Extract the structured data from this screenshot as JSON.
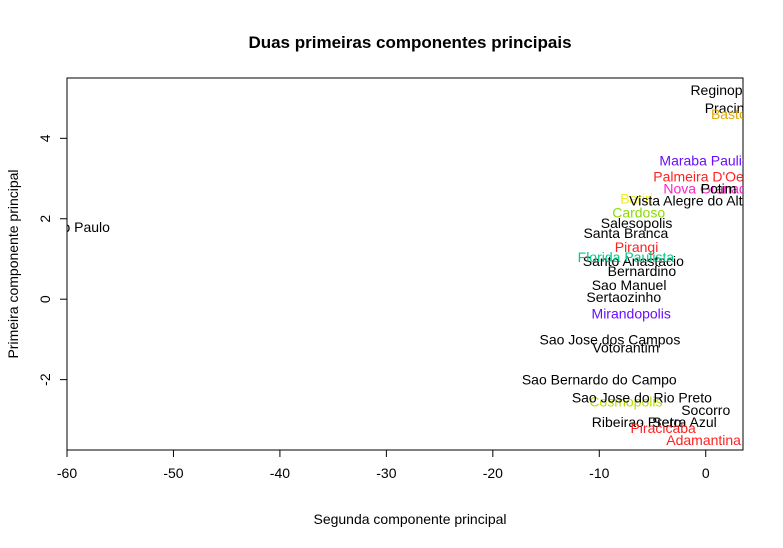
{
  "chart_data": {
    "type": "scatter",
    "title": "Duas primeiras componentes principais",
    "xlabel": "Segunda componente principal",
    "ylabel": "Primeira componente principal",
    "xlim": [
      -60,
      3.5
    ],
    "ylim": [
      -3.75,
      5.5
    ],
    "xticks": [
      -60,
      -50,
      -40,
      -30,
      -20,
      -10,
      0
    ],
    "yticks": [
      -2,
      0,
      2,
      4
    ],
    "xtick_labels": [
      "-60",
      "-50",
      "-40",
      "-30",
      "-20",
      "-10",
      "0"
    ],
    "ytick_labels": [
      "-2",
      "0",
      "2",
      "4"
    ],
    "grid": false,
    "legend": "none",
    "points": [
      {
        "label": "Sao Paulo",
        "x": -59.0,
        "y": 1.8,
        "color": "#000000"
      },
      {
        "label": "Reginopolis",
        "x": 2.0,
        "y": 5.2,
        "color": "#000000"
      },
      {
        "label": "Pracinha",
        "x": 2.5,
        "y": 4.75,
        "color": "#000000"
      },
      {
        "label": "Bastos",
        "x": 2.5,
        "y": 4.6,
        "color": "#DDAA00"
      },
      {
        "label": "Maraba Paulista",
        "x": 0.4,
        "y": 3.45,
        "color": "#6A0DFF"
      },
      {
        "label": "Palmeira D'Oeste",
        "x": 0.2,
        "y": 3.05,
        "color": "#FF2222"
      },
      {
        "label": "Nova Granada",
        "x": 0.3,
        "y": 2.75,
        "color": "#FF22CC"
      },
      {
        "label": "Potim",
        "x": 1.2,
        "y": 2.75,
        "color": "#000000"
      },
      {
        "label": "Bariri",
        "x": -6.5,
        "y": 2.5,
        "color": "#EEEE22"
      },
      {
        "label": "Vista Alegre do Alto",
        "x": -1.5,
        "y": 2.45,
        "color": "#000000"
      },
      {
        "label": "Cardoso",
        "x": -6.3,
        "y": 2.15,
        "color": "#88DD00"
      },
      {
        "label": "Salesopolis",
        "x": -6.5,
        "y": 1.9,
        "color": "#000000"
      },
      {
        "label": "Santa Branca",
        "x": -7.5,
        "y": 1.65,
        "color": "#000000"
      },
      {
        "label": "Pirangi",
        "x": -6.5,
        "y": 1.3,
        "color": "#FF2222"
      },
      {
        "label": "Santo Anastacio",
        "x": -6.8,
        "y": 0.95,
        "color": "#000000"
      },
      {
        "label": "Florida Paulista",
        "x": -7.5,
        "y": 1.05,
        "color": "#00CC88"
      },
      {
        "label": "Bernardino",
        "x": -6.0,
        "y": 0.7,
        "color": "#000000"
      },
      {
        "label": "Sao Manuel",
        "x": -7.2,
        "y": 0.35,
        "color": "#000000"
      },
      {
        "label": "Sertaozinho",
        "x": -7.7,
        "y": 0.05,
        "color": "#000000"
      },
      {
        "label": "Mirandopolis",
        "x": -7.0,
        "y": -0.35,
        "color": "#6A0DFF"
      },
      {
        "label": "Sao Jose dos Campos",
        "x": -9.0,
        "y": -1.0,
        "color": "#000000"
      },
      {
        "label": "Votorantim",
        "x": -7.5,
        "y": -1.2,
        "color": "#000000"
      },
      {
        "label": "Sao Bernardo do Campo",
        "x": -10.0,
        "y": -2.0,
        "color": "#000000"
      },
      {
        "label": "Cosmopolis",
        "x": -7.5,
        "y": -2.55,
        "color": "#BBDD00"
      },
      {
        "label": "Sao Jose do Rio Preto",
        "x": -6.0,
        "y": -2.45,
        "color": "#000000"
      },
      {
        "label": "Socorro",
        "x": 0.0,
        "y": -2.75,
        "color": "#000000"
      },
      {
        "label": "Serra Azul",
        "x": -2.0,
        "y": -3.05,
        "color": "#000000"
      },
      {
        "label": "Ribeirao Preto",
        "x": -6.5,
        "y": -3.05,
        "color": "#000000"
      },
      {
        "label": "Piracicaba",
        "x": -4.0,
        "y": -3.2,
        "color": "#FF2222"
      },
      {
        "label": "Adamantina",
        "x": -0.2,
        "y": -3.5,
        "color": "#FF2222"
      }
    ]
  }
}
